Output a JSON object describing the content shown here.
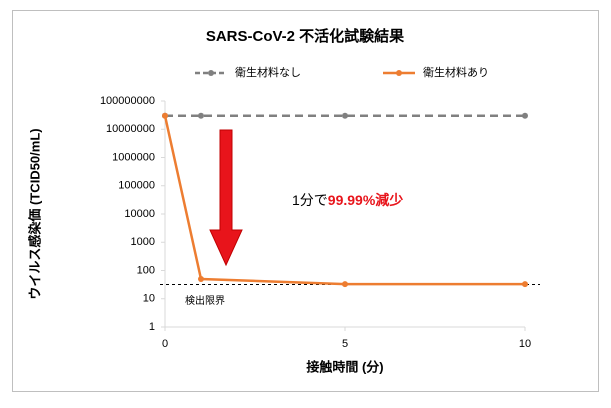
{
  "chart_data": {
    "type": "line",
    "title": "SARS-CoV-2 不活化試験結果",
    "x_label": "接触時間 (分)",
    "y_label": "ウイルス感染価 (TCID50/mL)",
    "x": [
      0,
      1,
      5,
      10
    ],
    "series": [
      {
        "name": "衛生材料なし",
        "color": "#808080",
        "dashed": true,
        "values": [
          30000000,
          30000000,
          30000000,
          30000000
        ]
      },
      {
        "name": "衛生材料あり",
        "color": "#ed7d31",
        "dashed": false,
        "values": [
          30000000,
          50,
          33,
          33
        ]
      }
    ],
    "xlim": [
      0,
      10
    ],
    "xticks": [
      0,
      5,
      10
    ],
    "ylim": [
      1,
      100000000
    ],
    "log_y": true,
    "yticks": [
      1,
      10,
      100,
      1000,
      10000,
      100000,
      1000000,
      10000000,
      100000000
    ],
    "grid": false,
    "legend": "top",
    "detection_limit": {
      "label": "検出限界",
      "value": 32
    },
    "annotation": {
      "parts": [
        {
          "text": "1分で",
          "color": "#000000"
        },
        {
          "text": "99.99%減少",
          "color": "#e8141b"
        }
      ]
    }
  }
}
